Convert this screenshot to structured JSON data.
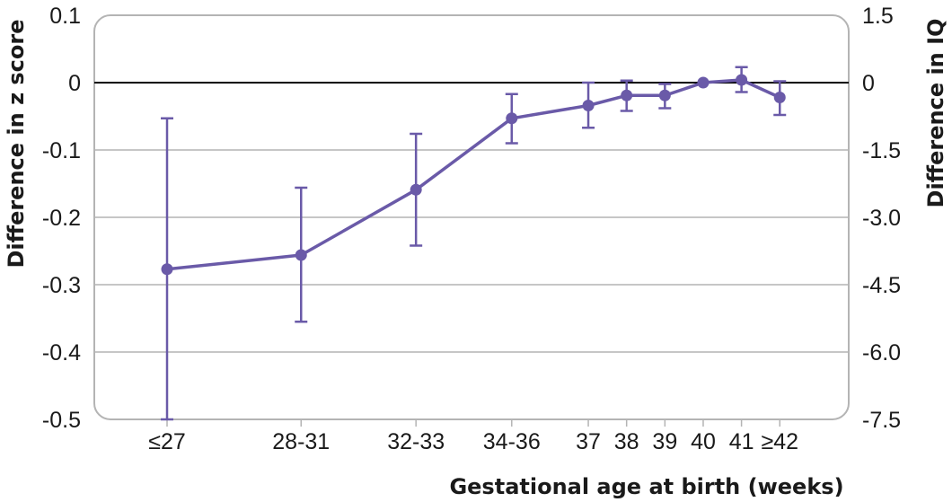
{
  "chart_data": {
    "type": "line",
    "xlabel": "Gestational age at birth (weeks)",
    "ylabel": "Difference in z score",
    "y2label": "Difference in IQ",
    "categories": [
      "≤27",
      "28-31",
      "32-33",
      "34-36",
      "37",
      "38",
      "39",
      "40",
      "41",
      "≥42"
    ],
    "x_positions": [
      26,
      29.5,
      32.5,
      35,
      37,
      38,
      39,
      40,
      41,
      42
    ],
    "ylim": [
      -0.5,
      0.1
    ],
    "y_ticks": [
      "0.1",
      "0",
      "-0.1",
      "-0.2",
      "-0.3",
      "-0.4",
      "-0.5"
    ],
    "y_tick_values": [
      0.1,
      0,
      -0.1,
      -0.2,
      -0.3,
      -0.4,
      -0.5
    ],
    "y2_ticks": [
      "1.5",
      "0",
      "-1.5",
      "-3.0",
      "-4.5",
      "-6.0",
      "-7.5"
    ],
    "grid": true,
    "reference_line": 0,
    "series": [
      {
        "values": [
          -0.277,
          -0.256,
          -0.159,
          -0.053,
          -0.034,
          -0.019,
          -0.019,
          0,
          0.004,
          -0.022
        ],
        "lower": [
          -0.5,
          -0.355,
          -0.242,
          -0.09,
          -0.067,
          -0.042,
          -0.038,
          0,
          -0.014,
          -0.048
        ],
        "upper": [
          -0.053,
          -0.156,
          -0.076,
          -0.017,
          0,
          0.003,
          -0.002,
          0,
          0.023,
          0.002
        ]
      }
    ],
    "colors": {
      "series": "#6a5aa8",
      "grid": "#b4b4b4",
      "frame": "#b4b4b4",
      "zero_line": "#000000"
    }
  }
}
